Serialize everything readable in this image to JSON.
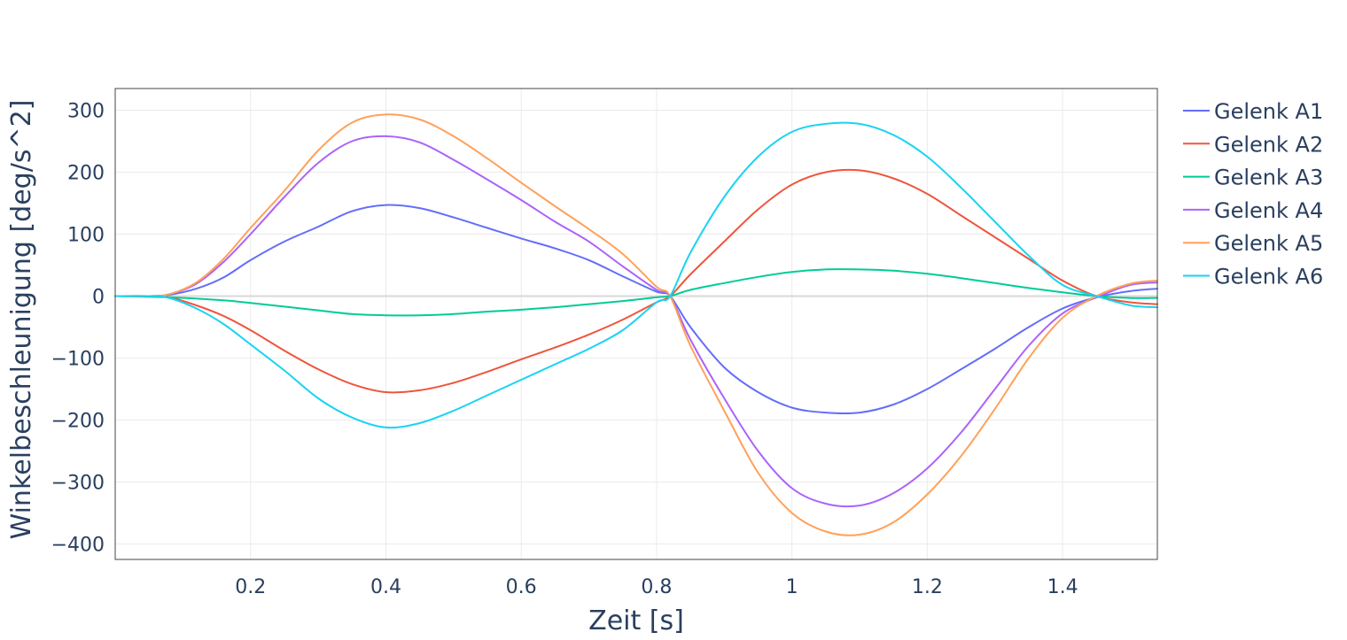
{
  "chart_data": {
    "type": "line",
    "title": "",
    "xlabel": "Zeit [s]",
    "ylabel": "Winkelbeschleunigung [deg/s^2]",
    "xlim": [
      0.0,
      1.54
    ],
    "ylim": [
      -425,
      335
    ],
    "xticks": [
      {
        "value": 0.2,
        "label": "0.2"
      },
      {
        "value": 0.4,
        "label": "0.4"
      },
      {
        "value": 0.6,
        "label": "0.6"
      },
      {
        "value": 0.8,
        "label": "0.8"
      },
      {
        "value": 1.0,
        "label": "1"
      },
      {
        "value": 1.2,
        "label": "1.2"
      },
      {
        "value": 1.4,
        "label": "1.4"
      }
    ],
    "yticks": [
      {
        "value": 300,
        "label": "300"
      },
      {
        "value": 200,
        "label": "200"
      },
      {
        "value": 100,
        "label": "100"
      },
      {
        "value": 0,
        "label": "0"
      },
      {
        "value": -100,
        "label": "−100"
      },
      {
        "value": -200,
        "label": "−200"
      },
      {
        "value": -300,
        "label": "−300"
      },
      {
        "value": -400,
        "label": "−400"
      }
    ],
    "grid": true,
    "legend_position": "top-right",
    "series": [
      {
        "name": "Gelenk A1",
        "color": "#636efa",
        "x": [
          0.0,
          0.05,
          0.08,
          0.12,
          0.16,
          0.2,
          0.25,
          0.3,
          0.35,
          0.4,
          0.45,
          0.5,
          0.55,
          0.6,
          0.65,
          0.7,
          0.75,
          0.8,
          0.82,
          0.85,
          0.9,
          0.95,
          1.0,
          1.05,
          1.1,
          1.15,
          1.2,
          1.25,
          1.3,
          1.35,
          1.4,
          1.45,
          1.5,
          1.54
        ],
        "y": [
          0,
          0,
          2,
          12,
          30,
          58,
          88,
          112,
          137,
          147,
          142,
          127,
          110,
          93,
          77,
          58,
          32,
          7,
          0,
          -50,
          -115,
          -155,
          -180,
          -188,
          -188,
          -175,
          -150,
          -118,
          -85,
          -50,
          -20,
          -2,
          8,
          12
        ]
      },
      {
        "name": "Gelenk A2",
        "color": "#ef553b",
        "x": [
          0.0,
          0.05,
          0.08,
          0.12,
          0.16,
          0.2,
          0.25,
          0.3,
          0.35,
          0.4,
          0.45,
          0.5,
          0.55,
          0.6,
          0.65,
          0.7,
          0.75,
          0.8,
          0.82,
          0.85,
          0.9,
          0.95,
          1.0,
          1.05,
          1.1,
          1.15,
          1.2,
          1.25,
          1.3,
          1.35,
          1.4,
          1.45,
          1.5,
          1.54
        ],
        "y": [
          0,
          0,
          -2,
          -15,
          -32,
          -55,
          -88,
          -118,
          -142,
          -155,
          -152,
          -140,
          -122,
          -102,
          -83,
          -62,
          -38,
          -10,
          0,
          35,
          88,
          140,
          180,
          200,
          203,
          190,
          165,
          130,
          95,
          60,
          25,
          0,
          -10,
          -13
        ]
      },
      {
        "name": "Gelenk A3",
        "color": "#00cc96",
        "x": [
          0.0,
          0.08,
          0.15,
          0.2,
          0.25,
          0.3,
          0.35,
          0.4,
          0.45,
          0.5,
          0.55,
          0.6,
          0.65,
          0.7,
          0.75,
          0.8,
          0.82,
          0.85,
          0.9,
          0.95,
          1.0,
          1.05,
          1.1,
          1.15,
          1.2,
          1.25,
          1.3,
          1.35,
          1.4,
          1.45,
          1.5,
          1.54
        ],
        "y": [
          0,
          -2,
          -6,
          -11,
          -17,
          -23,
          -29,
          -31,
          -31,
          -29,
          -25,
          -22,
          -18,
          -13,
          -8,
          -2,
          0,
          10,
          21,
          31,
          39,
          43,
          43,
          41,
          36,
          29,
          21,
          13,
          6,
          0,
          -3,
          -3
        ]
      },
      {
        "name": "Gelenk A4",
        "color": "#ab63fa",
        "x": [
          0.0,
          0.05,
          0.08,
          0.12,
          0.16,
          0.2,
          0.25,
          0.3,
          0.35,
          0.4,
          0.45,
          0.5,
          0.55,
          0.6,
          0.65,
          0.7,
          0.75,
          0.8,
          0.82,
          0.85,
          0.9,
          0.95,
          1.0,
          1.05,
          1.1,
          1.15,
          1.2,
          1.25,
          1.3,
          1.35,
          1.4,
          1.45,
          1.5,
          1.54
        ],
        "y": [
          0,
          0,
          3,
          20,
          55,
          100,
          160,
          215,
          250,
          258,
          248,
          220,
          188,
          155,
          120,
          88,
          48,
          10,
          0,
          -70,
          -165,
          -250,
          -310,
          -335,
          -338,
          -318,
          -278,
          -220,
          -150,
          -80,
          -28,
          -2,
          18,
          22
        ]
      },
      {
        "name": "Gelenk A5",
        "color": "#ffa15a",
        "x": [
          0.0,
          0.05,
          0.08,
          0.12,
          0.16,
          0.2,
          0.25,
          0.3,
          0.35,
          0.4,
          0.45,
          0.5,
          0.55,
          0.6,
          0.65,
          0.7,
          0.75,
          0.8,
          0.82,
          0.85,
          0.9,
          0.95,
          1.0,
          1.05,
          1.1,
          1.15,
          1.2,
          1.25,
          1.3,
          1.35,
          1.4,
          1.45,
          1.5,
          1.54
        ],
        "y": [
          0,
          0,
          3,
          22,
          60,
          110,
          170,
          235,
          280,
          293,
          285,
          258,
          222,
          183,
          145,
          108,
          68,
          15,
          0,
          -80,
          -185,
          -285,
          -350,
          -380,
          -385,
          -365,
          -320,
          -258,
          -182,
          -100,
          -35,
          0,
          20,
          25
        ]
      },
      {
        "name": "Gelenk A6",
        "color": "#19d3f3",
        "x": [
          0.0,
          0.05,
          0.08,
          0.12,
          0.16,
          0.2,
          0.25,
          0.3,
          0.35,
          0.4,
          0.45,
          0.5,
          0.55,
          0.6,
          0.65,
          0.7,
          0.75,
          0.8,
          0.82,
          0.85,
          0.9,
          0.95,
          1.0,
          1.05,
          1.1,
          1.15,
          1.2,
          1.25,
          1.3,
          1.35,
          1.4,
          1.45,
          1.5,
          1.54
        ],
        "y": [
          0,
          0,
          -3,
          -20,
          -45,
          -78,
          -120,
          -165,
          -196,
          -212,
          -205,
          -185,
          -160,
          -135,
          -110,
          -85,
          -55,
          -10,
          0,
          70,
          160,
          225,
          265,
          278,
          278,
          260,
          225,
          175,
          120,
          65,
          18,
          0,
          -15,
          -18
        ]
      }
    ]
  }
}
